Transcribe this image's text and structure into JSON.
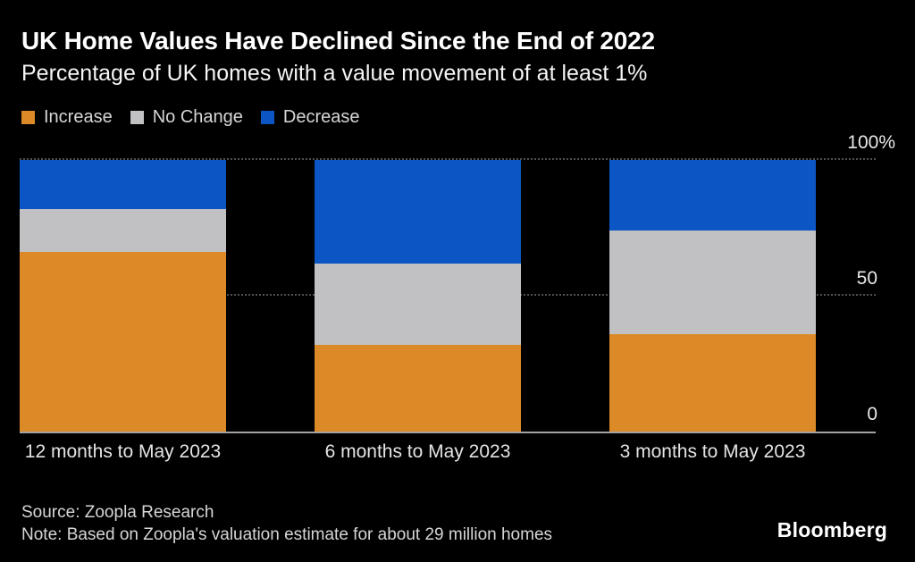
{
  "header": {
    "title": "UK Home Values Have Declined Since the End of 2022",
    "subtitle": "Percentage of UK homes with a value movement of at least 1%"
  },
  "legend": [
    {
      "label": "Increase",
      "color": "#dc8a27"
    },
    {
      "label": "No Change",
      "color": "#c1c1c3"
    },
    {
      "label": "Decrease",
      "color": "#0b56c4"
    }
  ],
  "chart_data": {
    "type": "bar",
    "stacked": true,
    "title": "UK Home Values Have Declined Since the End of 2022",
    "subtitle": "Percentage of UK homes with a value movement of at least 1%",
    "categories": [
      "12 months to May 2023",
      "6 months to May 2023",
      "3 months to May 2023"
    ],
    "series": [
      {
        "name": "Increase",
        "color": "#dc8a27",
        "values": [
          66,
          32,
          36
        ]
      },
      {
        "name": "No Change",
        "color": "#c1c1c3",
        "values": [
          16,
          30,
          38
        ]
      },
      {
        "name": "Decrease",
        "color": "#0b56c4",
        "values": [
          18,
          38,
          26
        ]
      }
    ],
    "xlabel": "",
    "ylabel": "",
    "ylim": [
      0,
      100
    ],
    "yticks": [
      {
        "value": 100,
        "label": "100%"
      },
      {
        "value": 50,
        "label": "50"
      },
      {
        "value": 0,
        "label": "0"
      }
    ],
    "grid": "horizontal dashed at 50 and 100, solid baseline at 0",
    "legend_position": "top-left",
    "background": "#000000"
  },
  "footer": {
    "source": "Source: Zoopla Research",
    "note": "Note: Based on Zoopla's valuation estimate for about 29 million homes",
    "brand": "Bloomberg"
  }
}
